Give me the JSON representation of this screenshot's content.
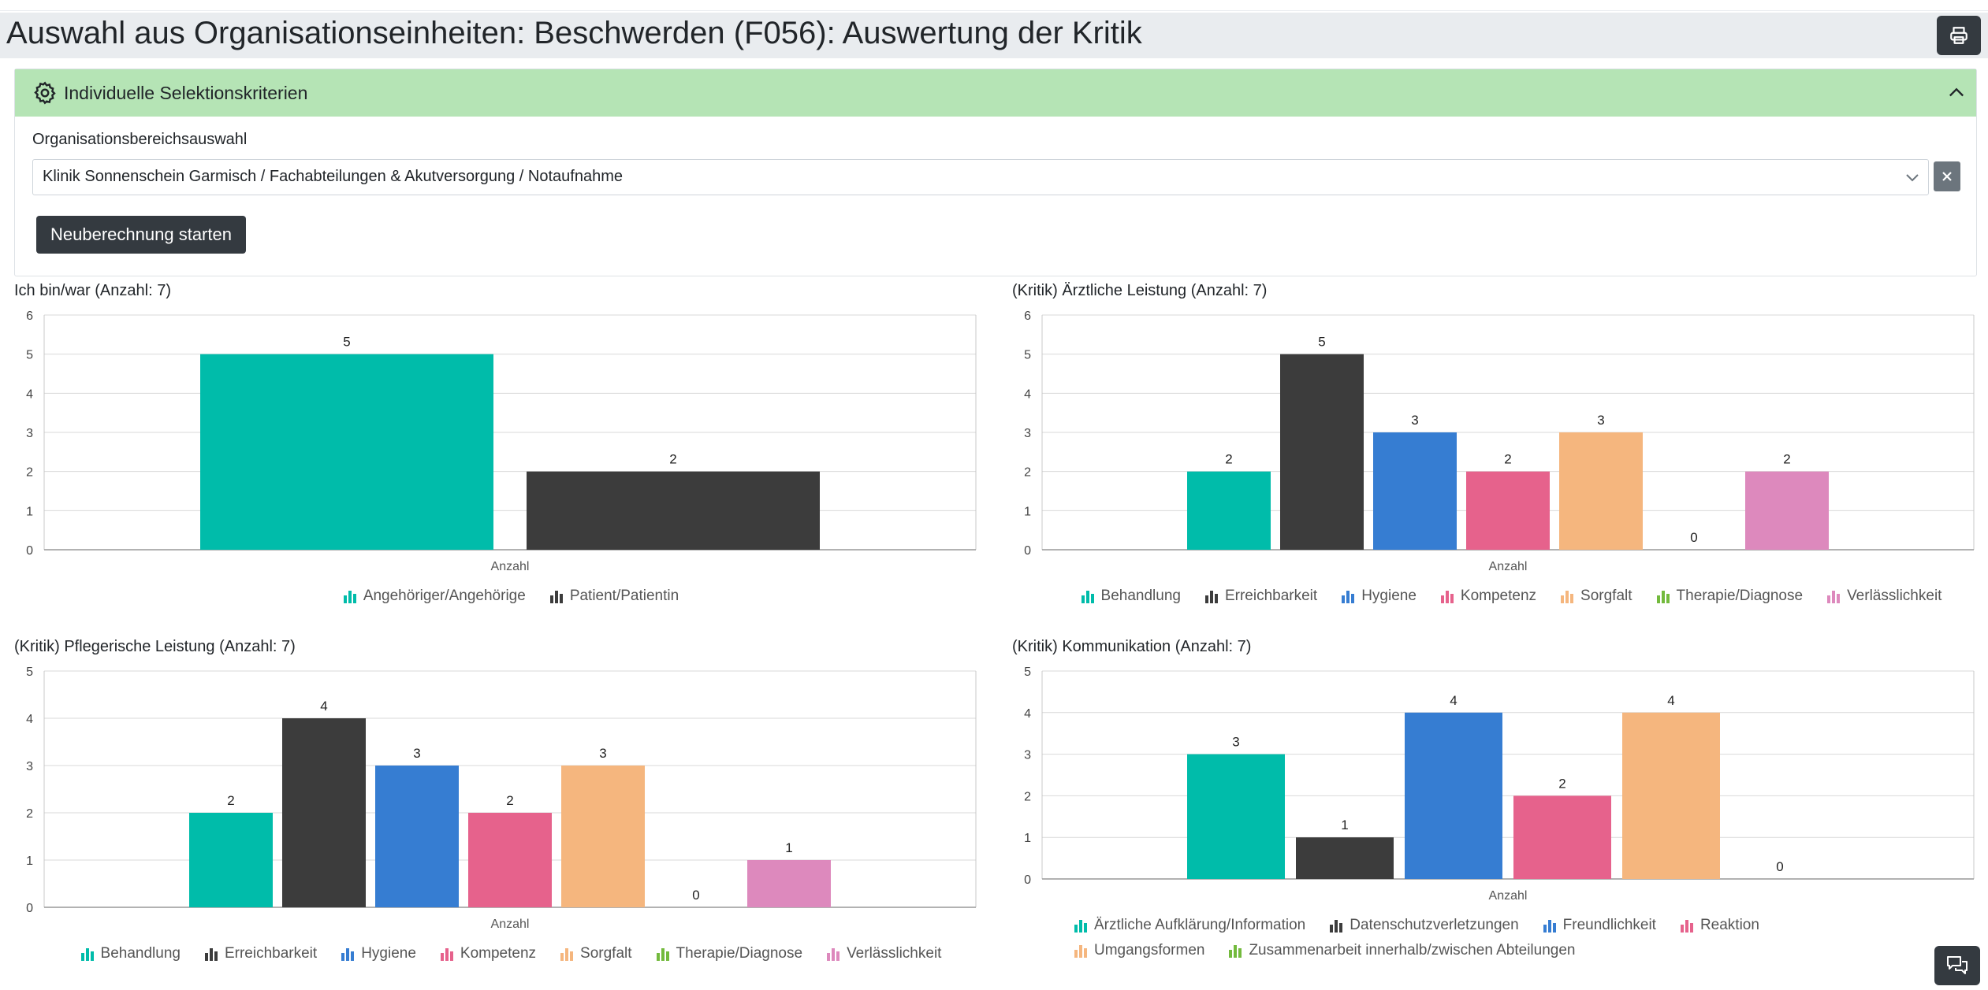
{
  "page": {
    "title": "Auswahl aus Organisationseinheiten: Beschwerden (F056): Auswertung der Kritik"
  },
  "toolbar": {
    "print_icon": "printer-icon",
    "chat_icon": "chat-icon"
  },
  "criteria": {
    "header": "Individuelle Selektionskriterien",
    "field_label": "Organisationsbereichsauswahl",
    "selected_value": "Klinik Sonnenschein Garmisch / Fachabteilungen & Akutversorgung / Notaufnahme",
    "recalc_label": "Neuberechnung starten",
    "clear_symbol": "×"
  },
  "colors": {
    "teal": "#00bcaa",
    "dark": "#3c3c3c",
    "blue": "#367dd2",
    "pink": "#e6628c",
    "orange": "#f5b67e",
    "green": "#73ba3d",
    "lilac": "#dd89bd"
  },
  "chart_data": [
    {
      "type": "bar",
      "title": "Ich bin/war (Anzahl: 7)",
      "categories": [
        "Anzahl"
      ],
      "series": [
        {
          "name": "Angehöriger/Angehörige",
          "values": [
            5
          ],
          "color": "#00bcaa"
        },
        {
          "name": "Patient/Patientin",
          "values": [
            2
          ],
          "color": "#3c3c3c"
        }
      ],
      "ylim": [
        0,
        6
      ],
      "yticks": [
        0,
        1,
        2,
        3,
        4,
        5,
        6
      ],
      "grid": true,
      "legend": "bottom"
    },
    {
      "type": "bar",
      "title": "(Kritik) Ärztliche Leistung (Anzahl: 7)",
      "categories": [
        "Anzahl"
      ],
      "series": [
        {
          "name": "Behandlung",
          "values": [
            2
          ],
          "color": "#00bcaa"
        },
        {
          "name": "Erreichbarkeit",
          "values": [
            5
          ],
          "color": "#3c3c3c"
        },
        {
          "name": "Hygiene",
          "values": [
            3
          ],
          "color": "#367dd2"
        },
        {
          "name": "Kompetenz",
          "values": [
            2
          ],
          "color": "#e6628c"
        },
        {
          "name": "Sorgfalt",
          "values": [
            3
          ],
          "color": "#f5b67e"
        },
        {
          "name": "Therapie/Diagnose",
          "values": [
            0
          ],
          "color": "#73ba3d"
        },
        {
          "name": "Verlässlichkeit",
          "values": [
            2
          ],
          "color": "#dd89bd"
        }
      ],
      "ylim": [
        0,
        6
      ],
      "yticks": [
        0,
        1,
        2,
        3,
        4,
        5,
        6
      ],
      "grid": true,
      "legend": "bottom"
    },
    {
      "type": "bar",
      "title": "(Kritik) Pflegerische Leistung (Anzahl: 7)",
      "categories": [
        "Anzahl"
      ],
      "series": [
        {
          "name": "Behandlung",
          "values": [
            2
          ],
          "color": "#00bcaa"
        },
        {
          "name": "Erreichbarkeit",
          "values": [
            4
          ],
          "color": "#3c3c3c"
        },
        {
          "name": "Hygiene",
          "values": [
            3
          ],
          "color": "#367dd2"
        },
        {
          "name": "Kompetenz",
          "values": [
            2
          ],
          "color": "#e6628c"
        },
        {
          "name": "Sorgfalt",
          "values": [
            3
          ],
          "color": "#f5b67e"
        },
        {
          "name": "Therapie/Diagnose",
          "values": [
            0
          ],
          "color": "#73ba3d"
        },
        {
          "name": "Verlässlichkeit",
          "values": [
            1
          ],
          "color": "#dd89bd"
        }
      ],
      "ylim": [
        0,
        5
      ],
      "yticks": [
        0,
        1,
        2,
        3,
        4,
        5
      ],
      "grid": true,
      "legend": "bottom"
    },
    {
      "type": "bar",
      "title": "(Kritik) Kommunikation (Anzahl: 7)",
      "categories": [
        "Anzahl"
      ],
      "series": [
        {
          "name": "Ärztliche Aufklärung/Information",
          "values": [
            3
          ],
          "color": "#00bcaa"
        },
        {
          "name": "Datenschutzverletzungen",
          "values": [
            1
          ],
          "color": "#3c3c3c"
        },
        {
          "name": "Freundlichkeit",
          "values": [
            4
          ],
          "color": "#367dd2"
        },
        {
          "name": "Reaktion",
          "values": [
            2
          ],
          "color": "#e6628c"
        },
        {
          "name": "Umgangsformen",
          "values": [
            4
          ],
          "color": "#f5b67e"
        },
        {
          "name": "Zusammenarbeit innerhalb/zwischen Abteilungen",
          "values": [
            0
          ],
          "color": "#73ba3d"
        }
      ],
      "ylim": [
        0,
        5
      ],
      "yticks": [
        0,
        1,
        2,
        3,
        4,
        5
      ],
      "grid": true,
      "legend": "bottom"
    }
  ]
}
